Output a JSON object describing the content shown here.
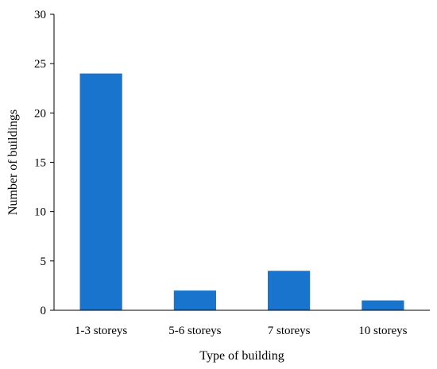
{
  "chart_data": {
    "type": "bar",
    "categories": [
      "1-3 storeys",
      "5-6 storeys",
      "7 storeys",
      "10 storeys"
    ],
    "values": [
      24,
      2,
      4,
      1
    ],
    "title": "",
    "xlabel": "Type of building",
    "ylabel": "Number of buildings",
    "ylim": [
      0,
      30
    ],
    "yticks": [
      0,
      5,
      10,
      15,
      20,
      25,
      30
    ],
    "grid": false,
    "bar_color": "#1874CD"
  }
}
